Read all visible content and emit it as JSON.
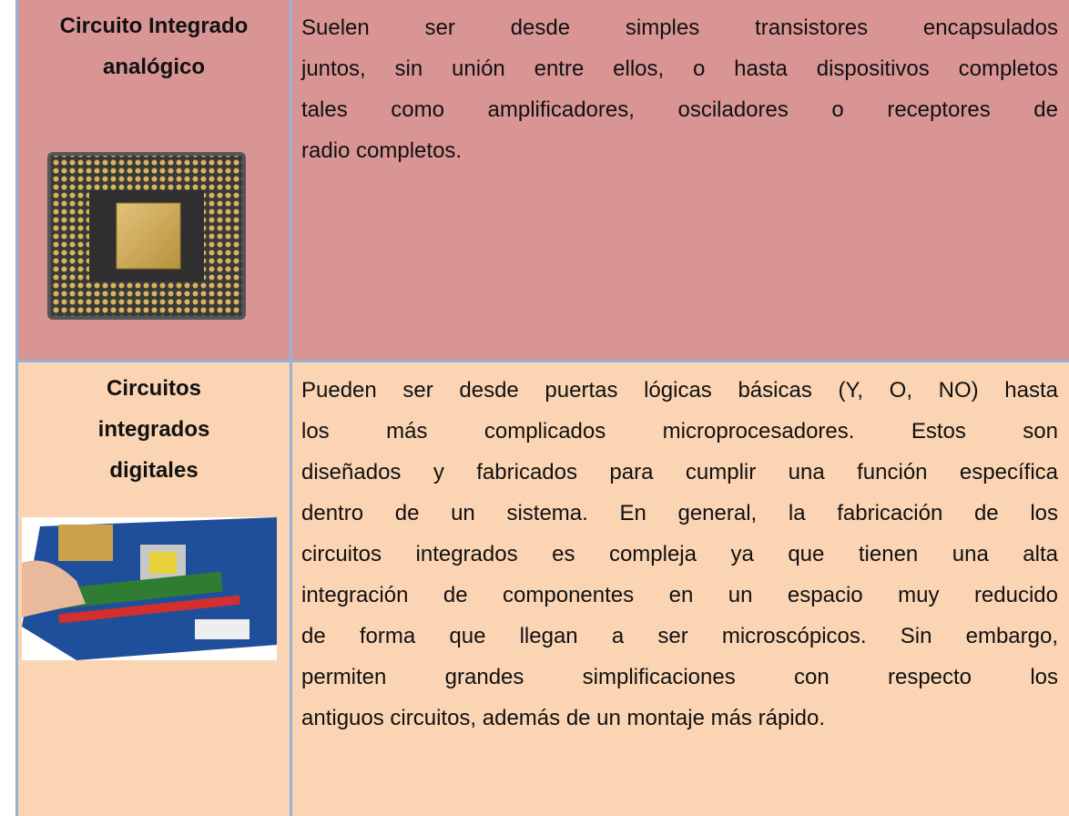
{
  "table": {
    "rows": [
      {
        "title_lines": [
          "Circuito Integrado",
          "analógico"
        ],
        "description_lines": [
          "Suelen ser desde simples transistores encapsulados",
          "juntos, sin unión entre ellos, o hasta dispositivos completos",
          "tales como amplificadores, osciladores o receptores de",
          "radio completos."
        ]
      },
      {
        "title_lines": [
          "Circuitos",
          "integrados",
          "digitales"
        ],
        "description_lines": [
          "Pueden ser desde puertas lógicas básicas (Y, O, NO) hasta",
          "los más complicados microprocesadores. Estos son",
          "diseñados y fabricados para cumplir una función específica",
          "dentro de un sistema. En general, la fabricación de los",
          "circuitos integrados es compleja ya que tienen una alta",
          "integración de componentes en un espacio muy reducido",
          "de forma que llegan a ser microscópicos. Sin embargo,",
          "permiten grandes simplificaciones con respecto los",
          "antiguos circuitos, además de un montaje más rápido."
        ]
      }
    ]
  }
}
